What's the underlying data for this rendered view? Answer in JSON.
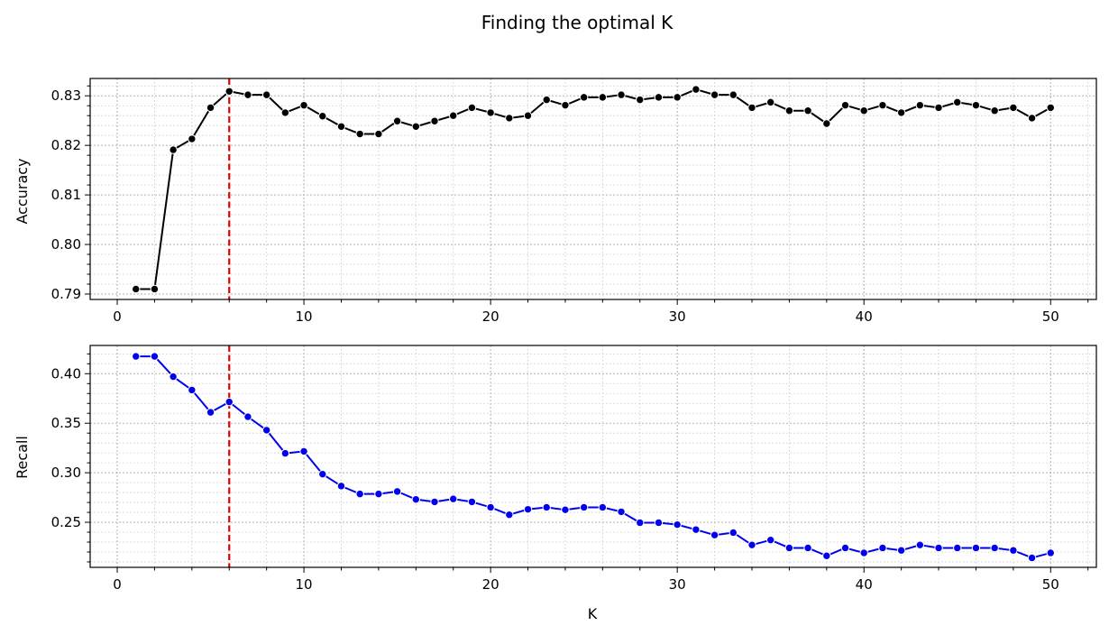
{
  "chart_data": {
    "type": "line",
    "title": "Finding the optimal K",
    "marker_line": {
      "x": 6,
      "color": "#e00000",
      "style": "dashed"
    },
    "grid": true,
    "grid_minor": true,
    "panels": [
      {
        "ylabel": "Accuracy",
        "xlabel": "",
        "xlim": [
          -1.45,
          52.45
        ],
        "ylim": [
          0.7889,
          0.8335
        ],
        "xticks": [
          0,
          10,
          20,
          30,
          40,
          50
        ],
        "xtick_labels": [
          "0",
          "10",
          "20",
          "30",
          "40",
          "50"
        ],
        "yticks": [
          0.79,
          0.8,
          0.81,
          0.82,
          0.83
        ],
        "ytick_labels": [
          "0.79",
          "0.80",
          "0.81",
          "0.82",
          "0.83"
        ],
        "series": [
          {
            "color": "#000000",
            "x": [
              1,
              2,
              3,
              4,
              5,
              6,
              7,
              8,
              9,
              10,
              11,
              12,
              13,
              14,
              15,
              16,
              17,
              18,
              19,
              20,
              21,
              22,
              23,
              24,
              25,
              26,
              27,
              28,
              29,
              30,
              31,
              32,
              33,
              34,
              35,
              36,
              37,
              38,
              39,
              40,
              41,
              42,
              43,
              44,
              45,
              46,
              47,
              48,
              49,
              50
            ],
            "y": [
              0.791,
              0.791,
              0.8191,
              0.8213,
              0.8276,
              0.8309,
              0.8302,
              0.8302,
              0.8266,
              0.8281,
              0.8259,
              0.8238,
              0.8223,
              0.8223,
              0.8249,
              0.8238,
              0.8249,
              0.826,
              0.8276,
              0.8266,
              0.8255,
              0.826,
              0.8292,
              0.8281,
              0.8297,
              0.8297,
              0.8302,
              0.8292,
              0.8297,
              0.8297,
              0.8313,
              0.8302,
              0.8302,
              0.8276,
              0.8287,
              0.827,
              0.827,
              0.8244,
              0.8281,
              0.827,
              0.8281,
              0.8266,
              0.8281,
              0.8276,
              0.8287,
              0.8281,
              0.827,
              0.8276,
              0.8255,
              0.8276
            ]
          }
        ]
      },
      {
        "ylabel": "Recall",
        "xlabel": "K",
        "xlim": [
          -1.45,
          52.45
        ],
        "ylim": [
          0.2045,
          0.4285
        ],
        "xticks": [
          0,
          10,
          20,
          30,
          40,
          50
        ],
        "xtick_labels": [
          "0",
          "10",
          "20",
          "30",
          "40",
          "50"
        ],
        "yticks": [
          0.25,
          0.3,
          0.35,
          0.4
        ],
        "ytick_labels": [
          "0.25",
          "0.30",
          "0.35",
          "0.40"
        ],
        "series": [
          {
            "color": "#0000ee",
            "x": [
              1,
              2,
              3,
              4,
              5,
              6,
              7,
              8,
              9,
              10,
              11,
              12,
              13,
              14,
              15,
              16,
              17,
              18,
              19,
              20,
              21,
              22,
              23,
              24,
              25,
              26,
              27,
              28,
              29,
              30,
              31,
              32,
              33,
              34,
              35,
              36,
              37,
              38,
              39,
              40,
              41,
              42,
              43,
              44,
              45,
              46,
              47,
              48,
              49,
              50
            ],
            "y": [
              0.4175,
              0.4175,
              0.397,
              0.3835,
              0.361,
              0.3715,
              0.3565,
              0.343,
              0.3196,
              0.3216,
              0.2986,
              0.2866,
              0.2786,
              0.2786,
              0.2811,
              0.2731,
              0.2706,
              0.2736,
              0.2706,
              0.2651,
              0.2576,
              0.2631,
              0.2651,
              0.2626,
              0.2651,
              0.2651,
              0.2606,
              0.2496,
              0.2496,
              0.2476,
              0.2426,
              0.2371,
              0.2396,
              0.2271,
              0.2321,
              0.2241,
              0.2241,
              0.2161,
              0.2241,
              0.2191,
              0.2241,
              0.2216,
              0.2271,
              0.2241,
              0.2241,
              0.2241,
              0.2241,
              0.2216,
              0.2141,
              0.2191
            ]
          }
        ]
      }
    ]
  }
}
